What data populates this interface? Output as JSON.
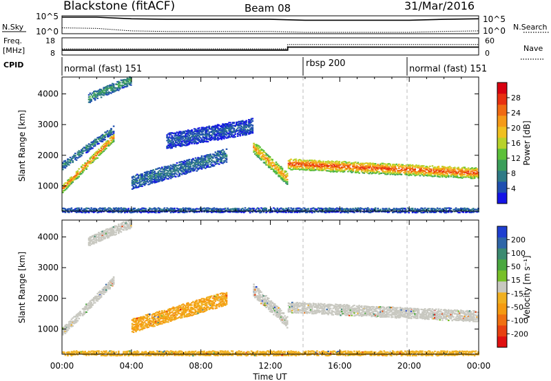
{
  "header": {
    "station": "Blackstone (fitACF)",
    "beam": "Beam 08",
    "date": "31/Mar/2016"
  },
  "top_panels": {
    "noise_left_label": "N.Sky",
    "noise_right_label": "N.Search",
    "noise_ticks_left": [
      "10^5",
      "10^0"
    ],
    "noise_ticks_right": [
      "10^5",
      "10^0"
    ],
    "freq_label_1": "Freq.",
    "freq_label_2": "[MHz]",
    "freq_ticks": [
      "18",
      "8"
    ],
    "nave_label": "Nave",
    "nave_ticks": [
      "60",
      "0"
    ],
    "cpid_label": "CPID",
    "cpid_segments": [
      {
        "label": "normal (fast) 151",
        "start_hour": 0
      },
      {
        "label": "rbsp 200",
        "start_hour": 14
      },
      {
        "label": "normal (fast) 151",
        "start_hour": 20
      }
    ]
  },
  "axes": {
    "xlabel": "Time UT",
    "x_ticks": [
      "00:00",
      "04:00",
      "08:00",
      "12:00",
      "16:00",
      "20:00",
      "00:00"
    ],
    "ylabel": "Slant Range [km]",
    "y_ticks": [
      "1000",
      "2000",
      "3000",
      "4000"
    ]
  },
  "colorbars": {
    "power": {
      "label": "Power [dB]",
      "ticks": [
        "4",
        "8",
        "12",
        "16",
        "20",
        "24",
        "28"
      ],
      "colors": [
        "#1414e6",
        "#1f4fb0",
        "#2e7a86",
        "#3b9e5a",
        "#5cc03a",
        "#b8d22a",
        "#f0c020",
        "#f59a18",
        "#f06a12",
        "#e83010",
        "#d80010"
      ]
    },
    "velocity": {
      "label": "Velocity [m s⁻¹]",
      "ticks": [
        "200",
        "100",
        "50",
        "15",
        "-15",
        "-50",
        "-100",
        "-200"
      ],
      "colors": [
        "#1f3fd0",
        "#2f66a8",
        "#3b8a70",
        "#4aa840",
        "#78c028",
        "#c8c8c0",
        "#f0b020",
        "#f59a10",
        "#f07010",
        "#e84010",
        "#e01010"
      ]
    }
  },
  "chart_data": [
    {
      "type": "line",
      "title": "N.Sky / N.Search",
      "xlim": [
        0,
        24
      ],
      "yscale": "log",
      "series": [
        {
          "name": "N.Sky",
          "x": [
            0,
            2,
            4,
            6,
            8,
            10,
            12,
            14,
            16,
            18,
            20,
            22,
            24
          ],
          "y": [
            100000,
            100000,
            30000,
            20000,
            20000,
            20000,
            20000,
            10000,
            10000,
            10000,
            10000,
            20000,
            30000
          ]
        },
        {
          "name": "N.Search",
          "x": [
            0,
            2,
            4,
            6,
            8,
            10,
            12,
            14,
            16,
            18,
            20,
            22,
            24
          ],
          "y": [
            30,
            20,
            3,
            2,
            2,
            2,
            2,
            1,
            1,
            1,
            1,
            2,
            3
          ]
        }
      ]
    },
    {
      "type": "line",
      "title": "Freq. / Nave",
      "xlim": [
        0,
        24
      ],
      "series": [
        {
          "name": "Freq. [MHz]",
          "x": [
            0,
            13.0,
            13.0,
            24
          ],
          "y": [
            10.5,
            10.5,
            12.5,
            12.5
          ]
        },
        {
          "name": "Nave",
          "x": [
            0,
            13.0,
            13.0,
            24
          ],
          "y": [
            20,
            20,
            38,
            38
          ]
        }
      ]
    },
    {
      "type": "heatmap",
      "title": "Power [dB]",
      "xlabel": "Time UT",
      "ylabel": "Slant Range [km]",
      "xlim": [
        0,
        24
      ],
      "ylim": [
        180,
        4550
      ],
      "zlim": [
        0,
        30
      ],
      "bands": [
        {
          "start_hour": 0.0,
          "end_hour": 3.0,
          "range_start_km": 950,
          "range_end_km": 2650,
          "width_km": 260,
          "power_db": 24
        },
        {
          "start_hour": 1.5,
          "end_hour": 4.0,
          "range_start_km": 3900,
          "range_end_km": 4500,
          "width_km": 300,
          "power_db": 10
        },
        {
          "start_hour": 0.0,
          "end_hour": 3.0,
          "range_start_km": 1700,
          "range_end_km": 2900,
          "width_km": 250,
          "power_db": 8
        },
        {
          "start_hour": 4.0,
          "end_hour": 9.5,
          "range_start_km": 1150,
          "range_end_km": 2050,
          "width_km": 450,
          "power_db": 7
        },
        {
          "start_hour": 6.0,
          "end_hour": 11.0,
          "range_start_km": 2500,
          "range_end_km": 3000,
          "width_km": 500,
          "power_db": 5
        },
        {
          "start_hour": 11.0,
          "end_hour": 13.0,
          "range_start_km": 2300,
          "range_end_km": 1250,
          "width_km": 400,
          "power_db": 22
        },
        {
          "start_hour": 13.0,
          "end_hour": 24.0,
          "range_start_km": 1750,
          "range_end_km": 1450,
          "width_km": 350,
          "power_db": 26
        },
        {
          "start_hour": 0.0,
          "end_hour": 24.0,
          "range_start_km": 250,
          "range_end_km": 250,
          "width_km": 150,
          "power_db": 6
        }
      ]
    },
    {
      "type": "heatmap",
      "title": "Velocity [m s-1]",
      "xlabel": "Time UT",
      "ylabel": "Slant Range [km]",
      "xlim": [
        0,
        24
      ],
      "ylim": [
        180,
        4550
      ],
      "zlim": [
        -200,
        200
      ],
      "bands": [
        {
          "start_hour": 0.0,
          "end_hour": 3.0,
          "range_start_km": 950,
          "range_end_km": 2650,
          "width_km": 260,
          "velocity_ms": 0
        },
        {
          "start_hour": 1.5,
          "end_hour": 4.0,
          "range_start_km": 3900,
          "range_end_km": 4500,
          "width_km": 300,
          "velocity_ms": 0
        },
        {
          "start_hour": 4.0,
          "end_hour": 9.5,
          "range_start_km": 1150,
          "range_end_km": 2050,
          "width_km": 450,
          "velocity_ms": -60
        },
        {
          "start_hour": 11.0,
          "end_hour": 13.0,
          "range_start_km": 2300,
          "range_end_km": 1250,
          "width_km": 400,
          "velocity_ms": 0
        },
        {
          "start_hour": 13.0,
          "end_hour": 24.0,
          "range_start_km": 1750,
          "range_end_km": 1450,
          "width_km": 350,
          "velocity_ms": 0
        },
        {
          "start_hour": 0.0,
          "end_hour": 24.0,
          "range_start_km": 250,
          "range_end_km": 250,
          "width_km": 150,
          "velocity_ms": -40
        }
      ]
    }
  ]
}
